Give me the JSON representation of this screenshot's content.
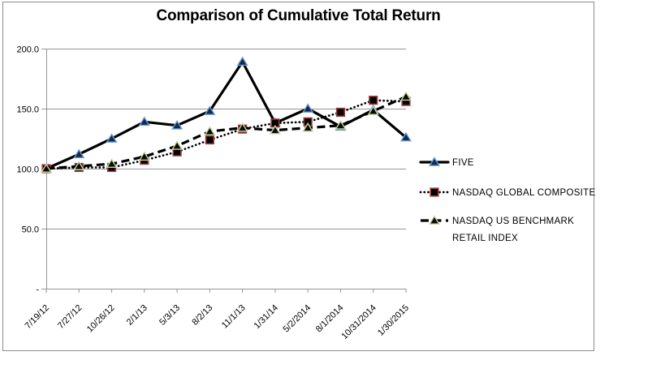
{
  "chart_data": {
    "type": "line",
    "title": "Comparison of Cumulative Total Return",
    "categories": [
      "7/19/12",
      "7/27/12",
      "10/26/12",
      "2/1/13",
      "5/3/13",
      "8/2/13",
      "11/1/13",
      "1/31/14",
      "5/2/2014",
      "8/1/2014",
      "10/31/2014",
      "1/30/2015"
    ],
    "series": [
      {
        "name": "FIVE",
        "legend_lines": [
          "FIVE"
        ],
        "values": [
          100,
          112,
          125,
          139,
          136,
          148,
          189,
          138,
          150,
          135,
          149,
          126
        ],
        "line_style": "solid",
        "line_color": "#000000",
        "marker": "triangle",
        "marker_fill": "#102B4D",
        "marker_stroke": "#6B9BD2"
      },
      {
        "name": "NASDAQ GLOBAL COMPOSITE",
        "legend_lines": [
          "NASDAQ GLOBAL COMPOSITE"
        ],
        "values": [
          100,
          101,
          101,
          107,
          114,
          124,
          133,
          138,
          139,
          147,
          157,
          156
        ],
        "line_style": "dotted",
        "line_color": "#000000",
        "marker": "square",
        "marker_fill": "#000000",
        "marker_stroke": "#9C3A38"
      },
      {
        "name": "NASDAQ US BENCHMARK RETAIL INDEX",
        "legend_lines": [
          "NASDAQ US BENCHMARK",
          "RETAIL INDEX"
        ],
        "values": [
          100,
          102,
          104,
          110,
          119,
          131,
          134,
          132,
          134,
          136,
          148,
          160
        ],
        "line_style": "dashed",
        "line_color": "#000000",
        "marker": "triangle",
        "marker_fill": "#0A0A0A",
        "marker_stroke": "#C6D6A0"
      }
    ],
    "y_axis": {
      "ticks": [
        {
          "label": "200.0",
          "value": 200
        },
        {
          "label": "150.0",
          "value": 150
        },
        {
          "label": "100.0",
          "value": 100
        },
        {
          "label": "50.0",
          "value": 50
        },
        {
          "label": "-",
          "value": 0
        }
      ],
      "ylim": [
        0,
        200
      ]
    },
    "xlabel": "",
    "ylabel": "",
    "grid": true,
    "legend_position": "right"
  },
  "colors": {
    "background": "#FFFFFF",
    "frame_border": "#8C8C8C",
    "gridline": "#969696",
    "axis": "#969696",
    "text": "#000000"
  }
}
